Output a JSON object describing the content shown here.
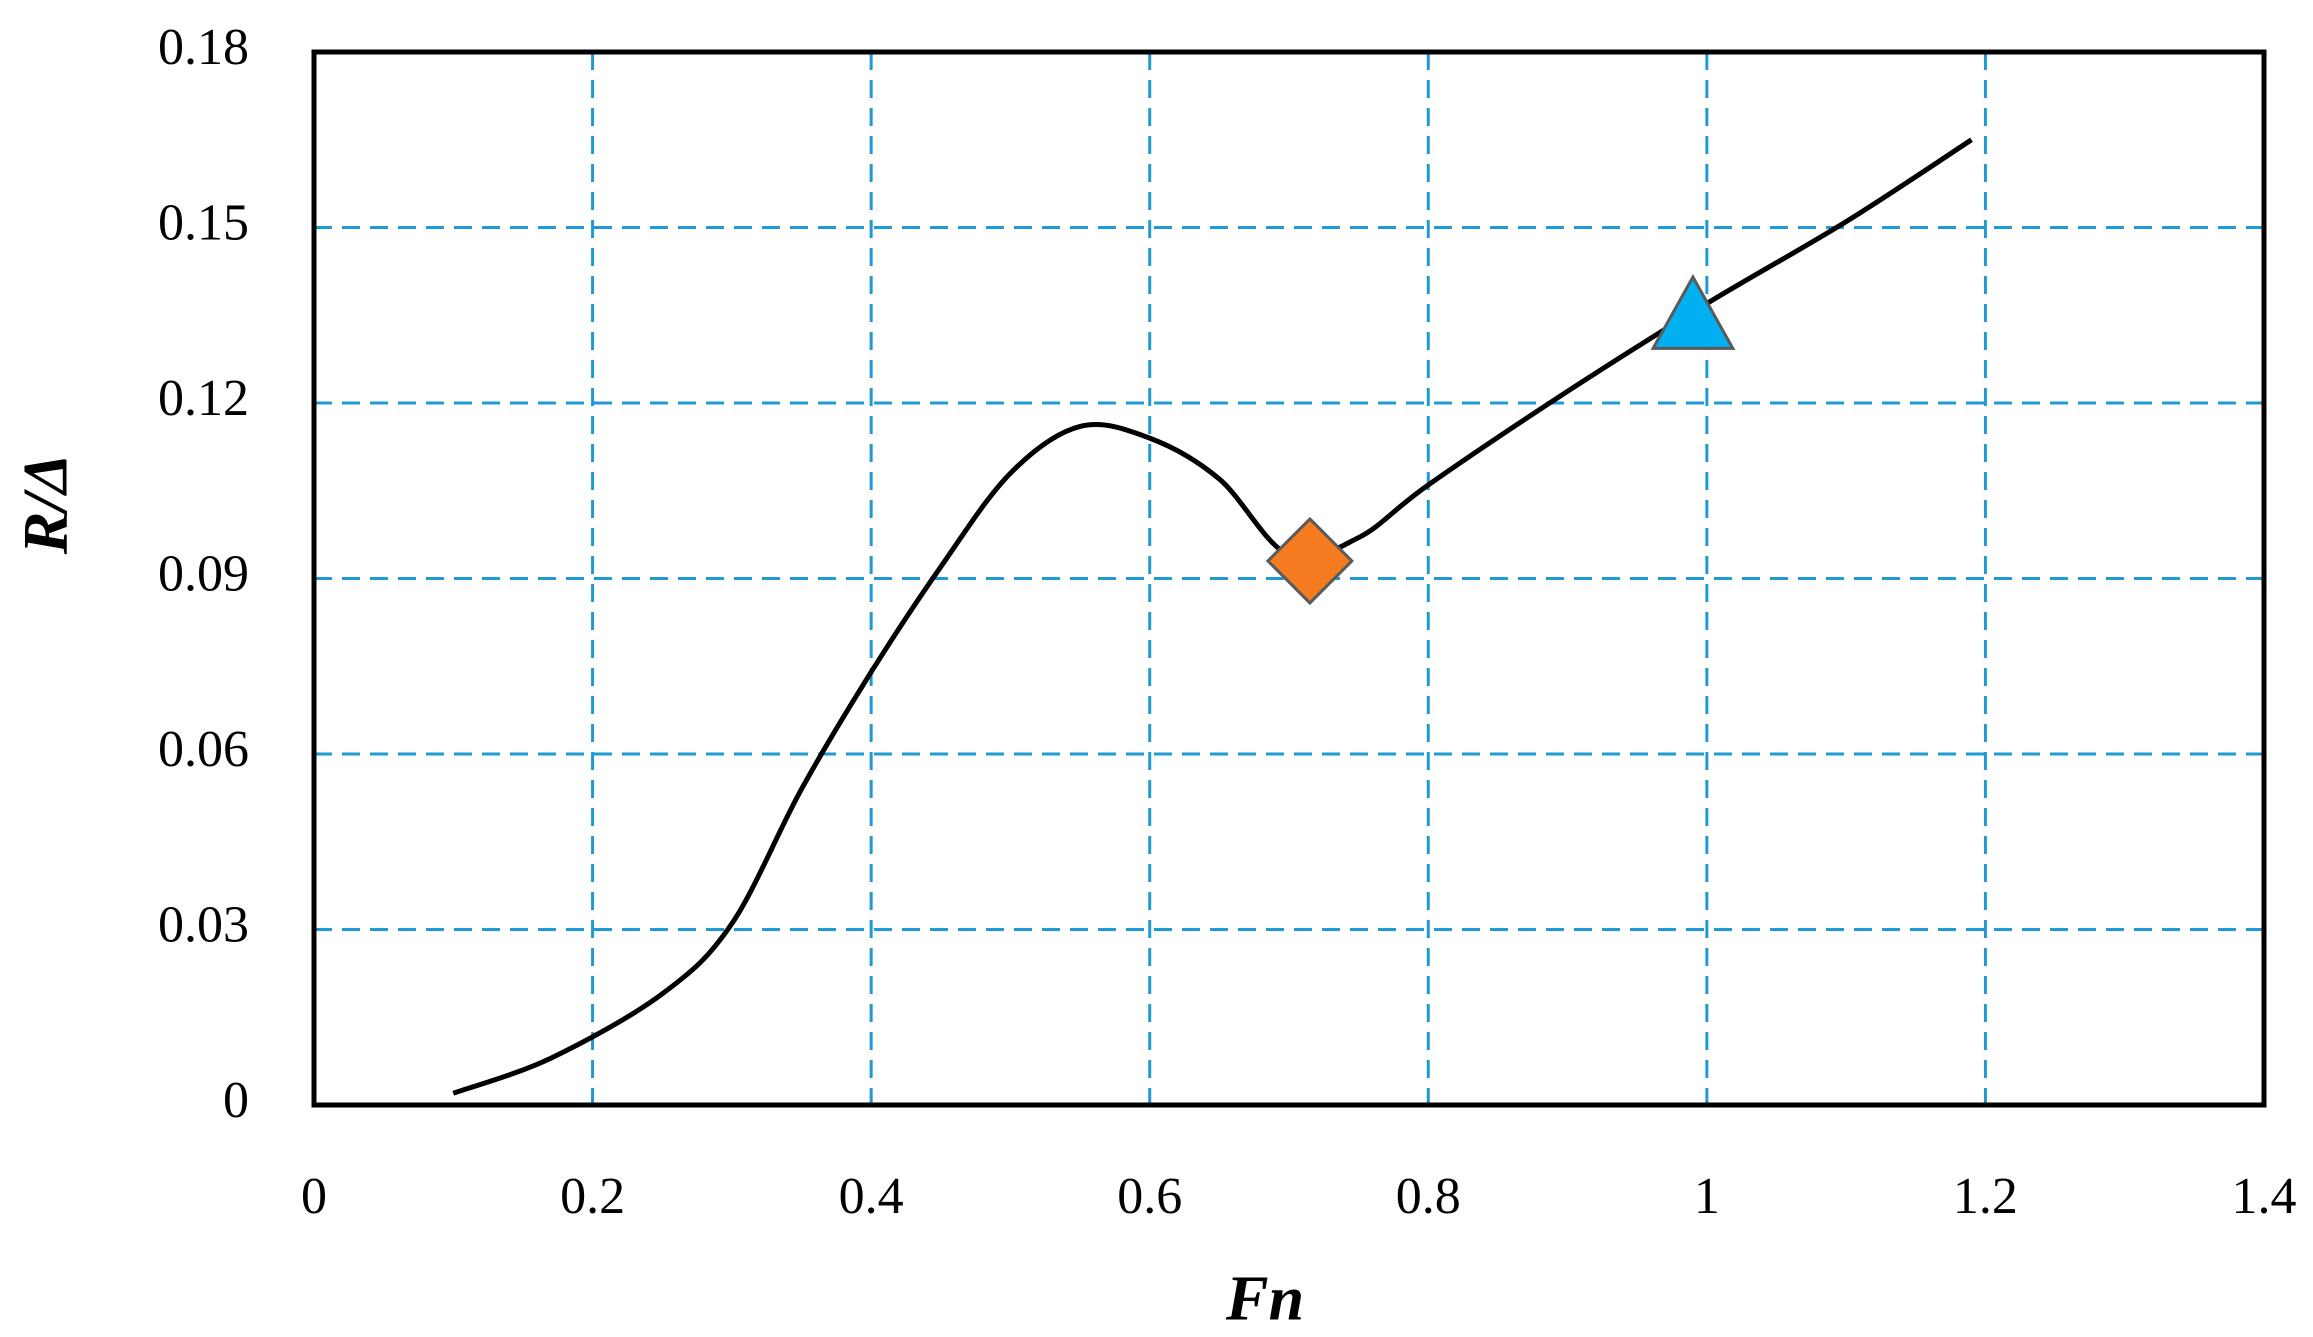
{
  "chart_data": {
    "type": "line",
    "xlabel": "Fn",
    "ylabel": "R/Δ",
    "xlim": [
      0,
      1.4
    ],
    "xticks": [
      0,
      0.2,
      0.4,
      0.6,
      0.8,
      1,
      1.2,
      1.4
    ],
    "ylim": [
      0,
      0.18
    ],
    "yticks": [
      0,
      0.03,
      0.06,
      0.09,
      0.12,
      0.15,
      0.18
    ],
    "grid": true,
    "grid_color": "#1f9ad6",
    "series": [
      {
        "color": "#000000",
        "x": [
          0.1,
          0.17,
          0.25,
          0.3,
          0.35,
          0.4,
          0.45,
          0.5,
          0.55,
          0.6,
          0.65,
          0.7,
          0.75,
          0.8,
          0.9,
          1.0,
          1.1,
          1.19
        ],
        "values": [
          0.002,
          0.008,
          0.019,
          0.031,
          0.054,
          0.074,
          0.092,
          0.108,
          0.116,
          0.114,
          0.107,
          0.094,
          0.097,
          0.106,
          0.122,
          0.137,
          0.151,
          0.165
        ]
      }
    ],
    "markers": [
      {
        "shape": "diamond",
        "color": "#f47b20",
        "x": 0.715,
        "y": 0.093
      },
      {
        "shape": "triangle",
        "color": "#00b0f0",
        "x": 0.99,
        "y": 0.134
      }
    ]
  }
}
